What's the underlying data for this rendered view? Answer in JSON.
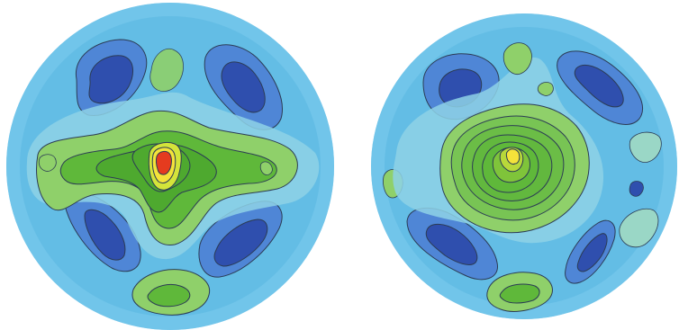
{
  "chart_data": [
    {
      "type": "heatmap",
      "description_kind": "circular-contour-map",
      "grid": false,
      "legend": "none",
      "palette": [
        "#5a9fdd",
        "#8ed2e6",
        "#8fd06a",
        "#5fb83a",
        "#d4e43a",
        "#f4e33a",
        "#e53b1f"
      ],
      "background_level_color": "#63bde5",
      "low_level_colors": [
        "#4f86d6",
        "#2f4fae"
      ],
      "regions": [
        {
          "kind": "low",
          "center": [
            -0.55,
            -0.55
          ],
          "levels": 3
        },
        {
          "kind": "low",
          "center": [
            0.55,
            -0.55
          ],
          "levels": 3
        },
        {
          "kind": "low",
          "center": [
            -0.55,
            0.55
          ],
          "levels": 3
        },
        {
          "kind": "low",
          "center": [
            0.55,
            0.55
          ],
          "levels": 3
        },
        {
          "kind": "high",
          "center": [
            0.0,
            0.0
          ],
          "levels": 7,
          "peak_color": "#e53b1f"
        },
        {
          "kind": "high",
          "center": [
            0.0,
            0.85
          ],
          "levels": 2
        },
        {
          "kind": "high",
          "center": [
            0.1,
            -0.8
          ],
          "levels": 1
        }
      ]
    },
    {
      "type": "heatmap",
      "description_kind": "circular-contour-map",
      "grid": false,
      "legend": "none",
      "palette": [
        "#5a9fdd",
        "#8ed2e6",
        "#8fd06a",
        "#5fb83a",
        "#d4e43a",
        "#f4e33a"
      ],
      "background_level_color": "#63bde5",
      "low_level_colors": [
        "#4f86d6",
        "#2f4fae"
      ],
      "regions": [
        {
          "kind": "low",
          "center": [
            -0.55,
            -0.5
          ],
          "levels": 3
        },
        {
          "kind": "low",
          "center": [
            0.55,
            -0.6
          ],
          "levels": 3
        },
        {
          "kind": "low",
          "center": [
            -0.55,
            0.5
          ],
          "levels": 3
        },
        {
          "kind": "low",
          "center": [
            0.55,
            0.55
          ],
          "levels": 2
        },
        {
          "kind": "high",
          "center": [
            0.0,
            0.0
          ],
          "levels": 9,
          "peak_color": "#f4e33a"
        },
        {
          "kind": "high",
          "center": [
            0.05,
            0.85
          ],
          "levels": 2
        }
      ]
    }
  ]
}
